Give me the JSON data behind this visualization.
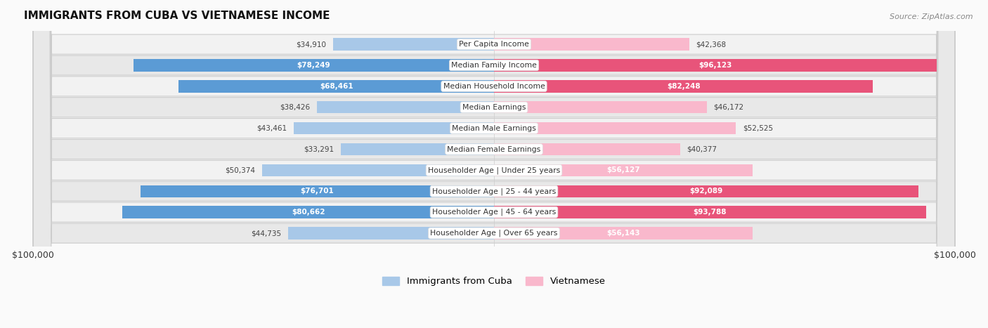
{
  "title": "IMMIGRANTS FROM CUBA VS VIETNAMESE INCOME",
  "source": "Source: ZipAtlas.com",
  "categories": [
    "Per Capita Income",
    "Median Family Income",
    "Median Household Income",
    "Median Earnings",
    "Median Male Earnings",
    "Median Female Earnings",
    "Householder Age | Under 25 years",
    "Householder Age | 25 - 44 years",
    "Householder Age | 45 - 64 years",
    "Householder Age | Over 65 years"
  ],
  "cuba_values": [
    34910,
    78249,
    68461,
    38426,
    43461,
    33291,
    50374,
    76701,
    80662,
    44735
  ],
  "viet_values": [
    42368,
    96123,
    82248,
    46172,
    52525,
    40377,
    56127,
    92089,
    93788,
    56143
  ],
  "cuba_labels": [
    "$34,910",
    "$78,249",
    "$68,461",
    "$38,426",
    "$43,461",
    "$33,291",
    "$50,374",
    "$76,701",
    "$80,662",
    "$44,735"
  ],
  "viet_labels": [
    "$42,368",
    "$96,123",
    "$82,248",
    "$46,172",
    "$52,525",
    "$40,377",
    "$56,127",
    "$92,089",
    "$93,788",
    "$56,143"
  ],
  "cuba_color_light": "#a8c8e8",
  "cuba_color_dark": "#5b9bd5",
  "viet_color_light": "#f9b8cc",
  "viet_color_dark": "#e8547a",
  "cuba_inside_threshold": 55000,
  "viet_inside_threshold": 55000,
  "max_val": 100000,
  "legend_cuba": "Immigrants from Cuba",
  "legend_viet": "Vietnamese",
  "xlabel_left": "$100,000",
  "xlabel_right": "$100,000",
  "row_colors": [
    "#f2f2f2",
    "#e8e8e8"
  ],
  "bg_color": "#fafafa"
}
